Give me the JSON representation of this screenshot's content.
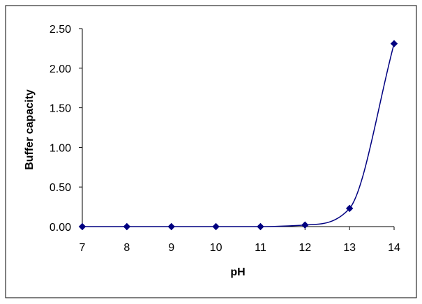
{
  "chart_data": {
    "type": "line",
    "title": "",
    "xlabel": "pH",
    "ylabel": "Buffer capacity",
    "x": [
      7,
      8,
      9,
      10,
      11,
      12,
      13,
      14
    ],
    "series": [
      {
        "values": [
          0.0,
          0.0,
          0.0,
          0.0,
          0.0,
          0.02,
          0.23,
          2.31
        ]
      }
    ],
    "xlim": [
      7,
      14
    ],
    "ylim": [
      0,
      2.5
    ],
    "x_ticks": [
      "7",
      "8",
      "9",
      "10",
      "11",
      "12",
      "13",
      "14"
    ],
    "y_ticks": [
      "0.00",
      "0.50",
      "1.00",
      "1.50",
      "2.00",
      "2.50"
    ],
    "line_color": "#000080",
    "marker": "diamond",
    "smoothed": true,
    "grid": false,
    "legend": "none"
  }
}
